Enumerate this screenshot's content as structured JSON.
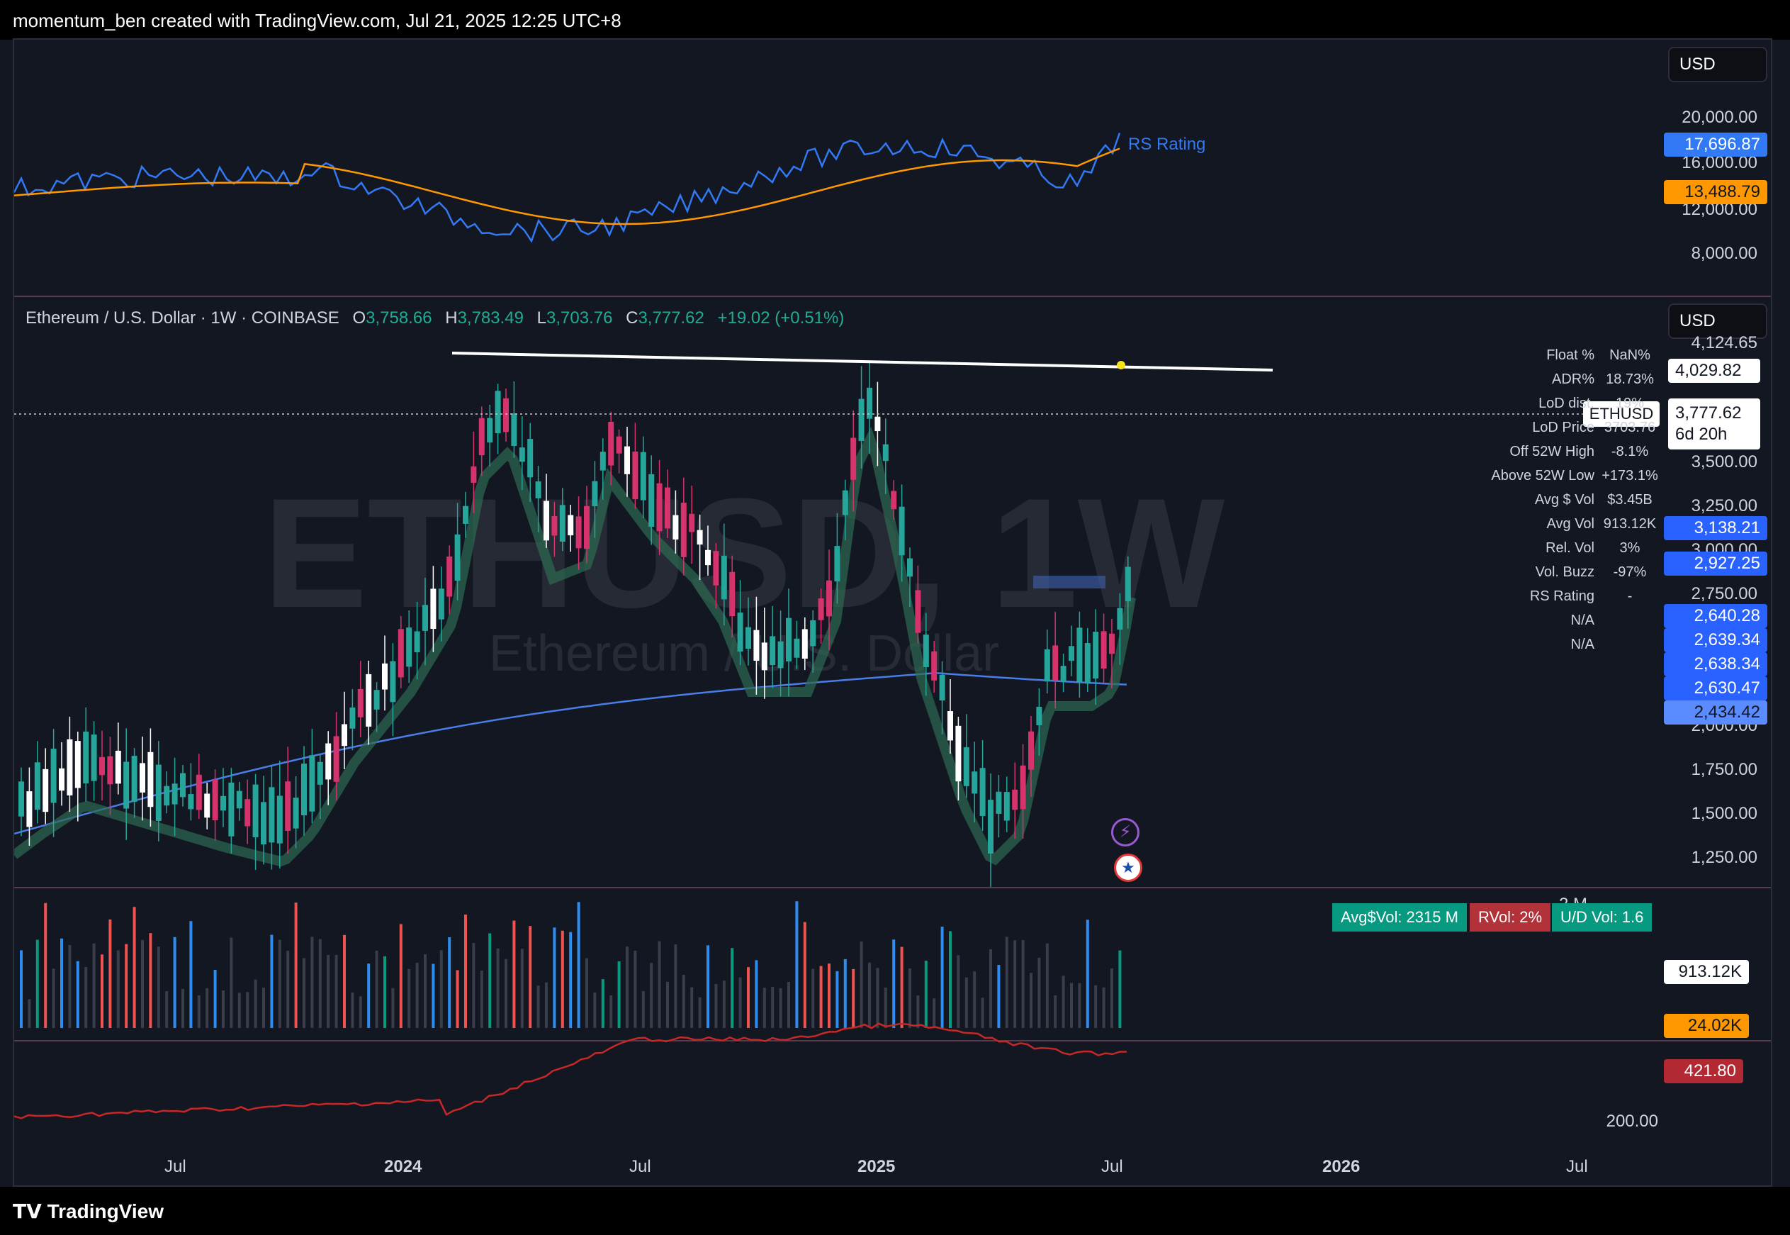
{
  "header": {
    "attribution": "momentum_ben created with TradingView.com, Jul 21, 2025 12:25 UTC+8"
  },
  "footer": {
    "logo_text": "TradingView",
    "logo_mark": "TV-logo-icon"
  },
  "rs_pane": {
    "currency": "USD",
    "label": "RS Rating",
    "axis_ticks": [
      "20,000.00",
      "16,000.00",
      "12,000.00",
      "8,000.00"
    ],
    "badges": [
      {
        "value": "17,696.87",
        "color": "#3179f5"
      },
      {
        "value": "13,488.79",
        "color": "#ff9800"
      }
    ]
  },
  "price_pane": {
    "currency": "USD",
    "legend": {
      "symbol": "Ethereum / U.S. Dollar · 1W · COINBASE",
      "o_label": "O",
      "o": "3,758.66",
      "h_label": "H",
      "h": "3,783.49",
      "l_label": "L",
      "l": "3,703.76",
      "c_label": "C",
      "c": "3,777.62",
      "change": "+19.02 (+0.51%)"
    },
    "watermark": {
      "main": "ETHUSD, 1W",
      "sub": "Ethereum / U.S. Dollar"
    },
    "axis_ticks": [
      "4,124.65",
      "3,500.00",
      "3,250.00",
      "3,000.00",
      "2,750.00",
      "2,000.00",
      "1,750.00",
      "1,500.00",
      "1,250.00"
    ],
    "last_price": {
      "value": "3,777.62",
      "countdown": "6d 20h",
      "symbol_tag": "ETHUSD"
    },
    "resistance_label": "4,029.82",
    "ma_badges": [
      "3,138.21",
      "2,927.25",
      "2,640.28",
      "2,639.34",
      "2,638.34",
      "2,630.47",
      "2,434.42"
    ],
    "stats": [
      {
        "label": "Float %",
        "value": "NaN%"
      },
      {
        "label": "ADR%",
        "value": "18.73%"
      },
      {
        "label": "LoD dist.",
        "value": "19%"
      },
      {
        "label": "LoD Price",
        "value": "3703.76"
      },
      {
        "label": "Off 52W High",
        "value": "-8.1%"
      },
      {
        "label": "Above 52W Low",
        "value": "+173.1%"
      },
      {
        "label": "Avg $ Vol",
        "value": "$3.45B"
      },
      {
        "label": "Avg Vol",
        "value": "913.12K"
      },
      {
        "label": "Rel. Vol",
        "value": "3%"
      },
      {
        "label": "Vol. Buzz",
        "value": "-97%"
      },
      {
        "label": "RS Rating",
        "value": "-"
      },
      {
        "label": "N/A",
        "value": ""
      },
      {
        "label": "N/A",
        "value": ""
      }
    ]
  },
  "volume_pane": {
    "axis_top": "2 M",
    "badges": [
      {
        "value": "913.12K",
        "color": "#ffffff"
      },
      {
        "value": "24.02K",
        "color": "#ff9800"
      }
    ],
    "info_boxes": [
      {
        "text": "Avg$Vol: 2315 M",
        "color": "#089981"
      },
      {
        "text": "RVol: 2%",
        "color": "#b2323a"
      },
      {
        "text": "U/D Vol: 1.6",
        "color": "#089981"
      }
    ]
  },
  "bottom_pane": {
    "axis_ticks": [
      "200.00"
    ],
    "badge": {
      "value": "421.80",
      "color": "#b22833"
    }
  },
  "time_axis": [
    "Jul",
    "2024",
    "Jul",
    "2025",
    "Jul",
    "2026",
    "Jul"
  ]
}
